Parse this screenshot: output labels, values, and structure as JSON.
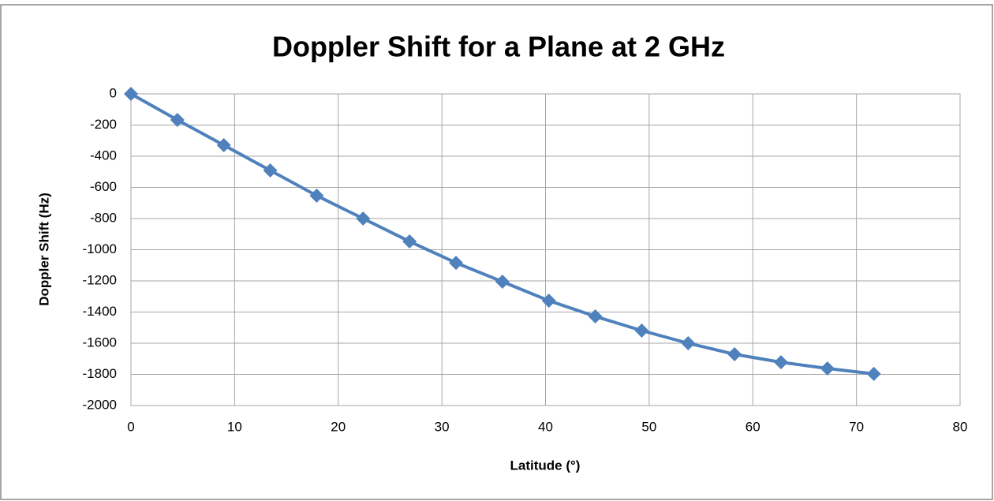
{
  "chart_data": {
    "type": "line",
    "title": "Doppler Shift for a Plane at 2 GHz",
    "x_label": "Latitude (°)",
    "y_label": "Doppler Shift (Hz)",
    "x": [
      0,
      4.48,
      8.96,
      13.44,
      17.92,
      22.4,
      26.88,
      31.36,
      35.84,
      40.32,
      44.8,
      49.28,
      53.76,
      58.24,
      62.72,
      67.2,
      71.68
    ],
    "series": [
      {
        "name": "Doppler Shift",
        "color": "#4f81bd",
        "values": [
          0,
          -167,
          -329,
          -491,
          -653,
          -800,
          -947,
          -1084,
          -1205,
          -1327,
          -1428,
          -1519,
          -1600,
          -1671,
          -1722,
          -1762,
          -1797
        ]
      }
    ],
    "xlim": [
      0,
      80
    ],
    "xticks": [
      0,
      10,
      20,
      30,
      40,
      50,
      60,
      70,
      80
    ],
    "ylim": [
      -2000,
      0
    ],
    "yticks": [
      0,
      -200,
      -400,
      -600,
      -800,
      -1000,
      -1200,
      -1400,
      -1600,
      -1800,
      -2000
    ],
    "grid": true
  }
}
